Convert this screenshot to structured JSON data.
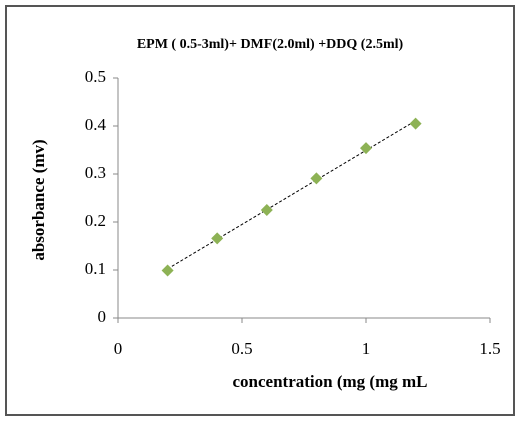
{
  "chart_data": {
    "type": "scatter",
    "title": "EPM ( 0.5-3ml)+ DMF(2.0ml) +DDQ (2.5ml)",
    "x_label": "concentration (mg   (mg mL",
    "y_label": "absorbance (mv)",
    "series": [
      {
        "x": [
          0.2,
          0.4,
          0.6,
          0.8,
          1.0,
          1.2
        ],
        "values": [
          0.099,
          0.166,
          0.225,
          0.291,
          0.354,
          0.405
        ],
        "color": "#8db255"
      }
    ],
    "xlim": [
      0,
      1.5
    ],
    "xticks": [
      0,
      0.5,
      1,
      1.5
    ],
    "ylim": [
      0,
      0.5
    ],
    "yticks": [
      0,
      0.1,
      0.2,
      0.3,
      0.4,
      0.5
    ],
    "trendline": true,
    "grid": false
  }
}
